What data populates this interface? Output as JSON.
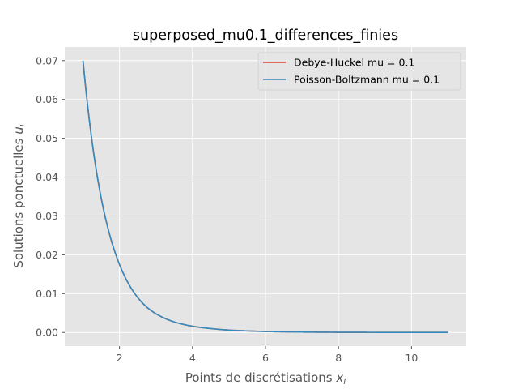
{
  "chart_data": {
    "type": "line",
    "title": "superposed_mu0.1_differences_finies",
    "xlabel": "Points de discrétisations ",
    "xlabel_var": "x",
    "xlabel_sub": "i",
    "ylabel": "Solutions ponctuelles ",
    "ylabel_var": "u",
    "ylabel_sub": "i",
    "xlim": [
      0.5,
      11.5
    ],
    "ylim": [
      -0.0035,
      0.0735
    ],
    "xticks": [
      2,
      4,
      6,
      8,
      10
    ],
    "yticks": [
      0.0,
      0.01,
      0.02,
      0.03,
      0.04,
      0.05,
      0.06,
      0.07
    ],
    "ytick_labels": [
      "0.00",
      "0.01",
      "0.02",
      "0.03",
      "0.04",
      "0.05",
      "0.06",
      "0.07"
    ],
    "grid": true,
    "legend_position": "top-right",
    "x": [
      1.0,
      1.25,
      1.5,
      1.75,
      2.0,
      2.25,
      2.5,
      2.75,
      3.0,
      3.5,
      4.0,
      4.5,
      5.0,
      5.5,
      6.0,
      7.0,
      8.0,
      9.0,
      10.0,
      11.0
    ],
    "series": [
      {
        "name": "Debye-Huckel mu = 0.1",
        "color": "#E24A33",
        "values": [
          0.07,
          0.049,
          0.0345,
          0.0245,
          0.0175,
          0.0125,
          0.009,
          0.0065,
          0.0048,
          0.0027,
          0.0016,
          0.001,
          0.0006,
          0.0004,
          0.00025,
          0.0001,
          4e-05,
          2e-05,
          1e-05,
          0.0
        ]
      },
      {
        "name": "Poisson-Boltzmann mu = 0.1",
        "color": "#348ABD",
        "values": [
          0.07,
          0.049,
          0.0345,
          0.0245,
          0.0175,
          0.0125,
          0.009,
          0.0065,
          0.0048,
          0.0027,
          0.0016,
          0.001,
          0.0006,
          0.0004,
          0.00025,
          0.0001,
          4e-05,
          2e-05,
          1e-05,
          0.0
        ]
      }
    ]
  },
  "colors": {
    "plot_background": "#E5E5E5",
    "grid": "#FFFFFF",
    "tick": "#555555"
  }
}
